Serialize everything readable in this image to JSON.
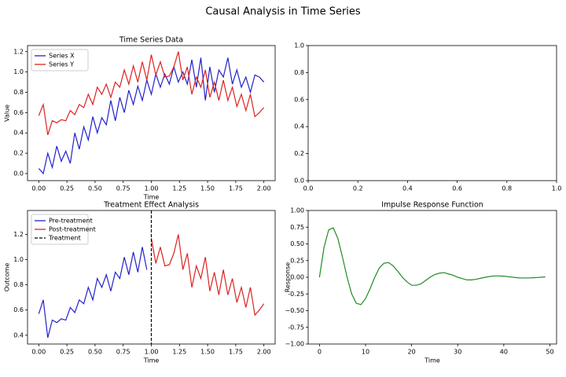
{
  "title": "Causal Analysis in Time Series",
  "chart_data": [
    {
      "type": "line",
      "title": "Time Series Data",
      "x_label": "Time",
      "y_label": "Value",
      "x": [
        0,
        0.04,
        0.08,
        0.12,
        0.16,
        0.2,
        0.24,
        0.28,
        0.32,
        0.36,
        0.4,
        0.44,
        0.48,
        0.52,
        0.56,
        0.6,
        0.64,
        0.68,
        0.72,
        0.76,
        0.8,
        0.84,
        0.88,
        0.92,
        0.96,
        1.0,
        1.04,
        1.08,
        1.12,
        1.16,
        1.2,
        1.24,
        1.28,
        1.32,
        1.36,
        1.4,
        1.44,
        1.48,
        1.52,
        1.56,
        1.6,
        1.64,
        1.68,
        1.72,
        1.76,
        1.8,
        1.84,
        1.88,
        1.92,
        1.96,
        2.0
      ],
      "series": [
        {
          "name": "Series X",
          "color": "#2222cc",
          "values": [
            0.05,
            0.0,
            0.2,
            0.06,
            0.27,
            0.12,
            0.22,
            0.1,
            0.4,
            0.24,
            0.46,
            0.33,
            0.56,
            0.4,
            0.55,
            0.48,
            0.72,
            0.52,
            0.75,
            0.6,
            0.82,
            0.68,
            0.86,
            0.72,
            0.92,
            0.78,
            0.98,
            0.85,
            0.98,
            0.88,
            1.05,
            0.9,
            1.0,
            0.88,
            1.12,
            0.85,
            1.14,
            0.72,
            1.05,
            0.8,
            1.02,
            0.95,
            1.14,
            0.88,
            1.02,
            0.85,
            0.95,
            0.8,
            0.97,
            0.95,
            0.9
          ]
        },
        {
          "name": "Series Y",
          "color": "#dd2222",
          "values": [
            0.57,
            0.68,
            0.38,
            0.52,
            0.5,
            0.53,
            0.52,
            0.62,
            0.58,
            0.68,
            0.65,
            0.78,
            0.68,
            0.85,
            0.78,
            0.88,
            0.75,
            0.9,
            0.85,
            1.02,
            0.88,
            1.06,
            0.9,
            1.1,
            0.92,
            1.17,
            0.97,
            1.1,
            0.95,
            0.96,
            1.05,
            1.2,
            0.92,
            1.05,
            0.78,
            0.95,
            0.85,
            1.02,
            0.75,
            0.9,
            0.72,
            0.92,
            0.72,
            0.85,
            0.66,
            0.78,
            0.62,
            0.78,
            0.56,
            0.6,
            0.65
          ]
        }
      ],
      "xlim": [
        -0.1,
        2.1
      ],
      "ylim": [
        -0.07,
        1.26
      ],
      "xticks": [
        {
          "value": 0,
          "label": "0.00"
        },
        0.25,
        {
          "value": 0.5,
          "label": "0.50"
        },
        0.75,
        {
          "value": 1,
          "label": "1.00"
        },
        1.25,
        {
          "value": 1.5,
          "label": "1.50"
        },
        1.75,
        {
          "value": 2,
          "label": "2.00"
        }
      ],
      "yticks": [
        {
          "value": 0,
          "label": "0.0"
        },
        0.2,
        0.4,
        0.6,
        0.8,
        {
          "value": 1,
          "label": "1.0"
        },
        1.2
      ],
      "legend": "upper left"
    },
    {
      "type": "line",
      "xlim": [
        0,
        1
      ],
      "ylim": [
        0,
        1
      ],
      "xticks": [
        {
          "value": 0,
          "label": "0.0"
        },
        0.2,
        0.4,
        0.6,
        0.8,
        {
          "value": 1,
          "label": "1.0"
        }
      ],
      "yticks": [
        {
          "value": 0,
          "label": "0.0"
        },
        0.2,
        0.4,
        0.6,
        0.8,
        {
          "value": 1,
          "label": "1.0"
        }
      ]
    },
    {
      "type": "line",
      "title": "Treatment Effect Analysis",
      "x_label": "Time",
      "y_label": "Outcome",
      "series": [
        {
          "name": "Pre-treatment",
          "color": "#2222cc",
          "x": [
            0,
            0.04,
            0.08,
            0.12,
            0.16,
            0.2,
            0.24,
            0.28,
            0.32,
            0.36,
            0.4,
            0.44,
            0.48,
            0.52,
            0.56,
            0.6,
            0.64,
            0.68,
            0.72,
            0.76,
            0.8,
            0.84,
            0.88,
            0.92,
            0.96
          ],
          "values": [
            0.57,
            0.68,
            0.38,
            0.52,
            0.5,
            0.53,
            0.52,
            0.62,
            0.58,
            0.68,
            0.65,
            0.78,
            0.68,
            0.85,
            0.78,
            0.88,
            0.75,
            0.9,
            0.85,
            1.02,
            0.88,
            1.06,
            0.9,
            1.1,
            0.92
          ]
        },
        {
          "name": "Post-treatment",
          "color": "#dd2222",
          "x": [
            1.0,
            1.04,
            1.08,
            1.12,
            1.16,
            1.2,
            1.24,
            1.28,
            1.32,
            1.36,
            1.4,
            1.44,
            1.48,
            1.52,
            1.56,
            1.6,
            1.64,
            1.68,
            1.72,
            1.76,
            1.8,
            1.84,
            1.88,
            1.92,
            1.96,
            2.0
          ],
          "values": [
            1.17,
            0.97,
            1.1,
            0.95,
            0.96,
            1.05,
            1.2,
            0.92,
            1.05,
            0.78,
            0.95,
            0.85,
            1.02,
            0.75,
            0.9,
            0.72,
            0.92,
            0.72,
            0.85,
            0.66,
            0.78,
            0.62,
            0.78,
            0.56,
            0.6,
            0.65
          ]
        }
      ],
      "vline": 1.0,
      "vline_label": "Treatment",
      "vline_color": "#000000",
      "xlim": [
        -0.1,
        2.1
      ],
      "ylim": [
        0.33,
        1.39
      ],
      "xticks": [
        {
          "value": 0,
          "label": "0.00"
        },
        0.25,
        {
          "value": 0.5,
          "label": "0.50"
        },
        0.75,
        {
          "value": 1,
          "label": "1.00"
        },
        1.25,
        {
          "value": 1.5,
          "label": "1.50"
        },
        1.75,
        {
          "value": 2,
          "label": "2.00"
        }
      ],
      "yticks": [
        0.4,
        0.6,
        0.8,
        {
          "value": 1,
          "label": "1.0"
        },
        1.2
      ],
      "legend": "upper left"
    },
    {
      "type": "line",
      "title": "Impulse Response Function",
      "x_label": "Time",
      "y_label": "Response",
      "x": [
        0,
        1,
        2,
        3,
        4,
        5,
        6,
        7,
        8,
        9,
        10,
        11,
        12,
        13,
        14,
        15,
        16,
        17,
        18,
        19,
        20,
        21,
        22,
        23,
        24,
        25,
        26,
        27,
        28,
        29,
        30,
        31,
        32,
        33,
        34,
        35,
        36,
        37,
        38,
        39,
        40,
        41,
        42,
        43,
        44,
        45,
        46,
        47,
        48,
        49
      ],
      "series": [
        {
          "color": "#228b22",
          "values": [
            0,
            0.45,
            0.71,
            0.74,
            0.58,
            0.3,
            0,
            -0.25,
            -0.39,
            -0.41,
            -0.32,
            -0.17,
            0,
            0.14,
            0.21,
            0.22,
            0.17,
            0.09,
            0,
            -0.07,
            -0.12,
            -0.12,
            -0.1,
            -0.05,
            0,
            0.04,
            0.06,
            0.07,
            0.05,
            0.03,
            0,
            -0.02,
            -0.04,
            -0.04,
            -0.03,
            -0.015,
            0,
            0.012,
            0.02,
            0.02,
            0.016,
            0.008,
            0,
            -0.007,
            -0.011,
            -0.011,
            -0.009,
            -0.005,
            0,
            0.004
          ]
        }
      ],
      "xlim": [
        -2.45,
        51.45
      ],
      "ylim": [
        -1,
        1
      ],
      "xticks": [
        0,
        10,
        20,
        30,
        40,
        50
      ],
      "yticks": [
        {
          "value": -1,
          "label": "−1.00"
        },
        -0.75,
        {
          "value": -0.5,
          "label": "−0.50"
        },
        -0.25,
        {
          "value": 0,
          "label": "0.00"
        },
        0.25,
        {
          "value": 0.5,
          "label": "0.50"
        },
        0.75,
        {
          "value": 1,
          "label": "1.00"
        }
      ]
    }
  ]
}
